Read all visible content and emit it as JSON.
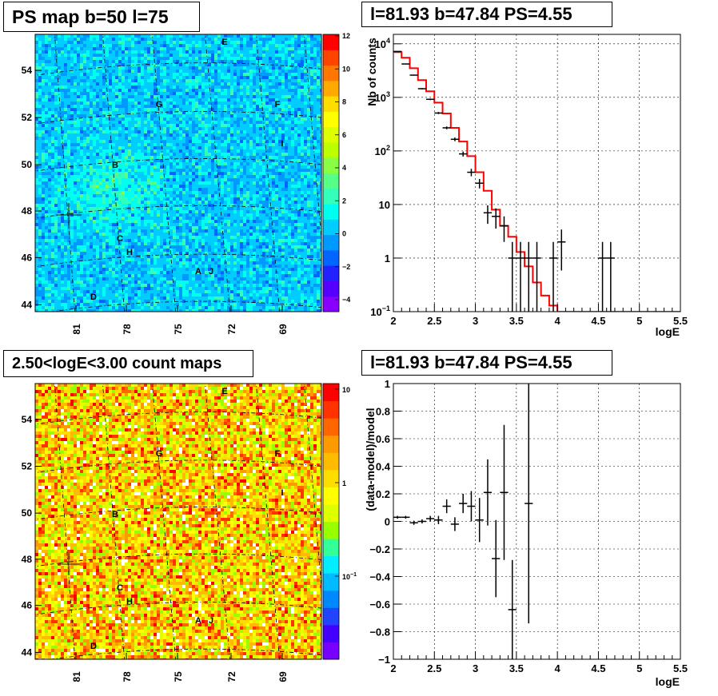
{
  "chart_data": [
    {
      "type": "heatmap",
      "title": "PS map b=50 l=75",
      "x_ticks": [
        "81",
        "78",
        "75",
        "72",
        "69"
      ],
      "y_ticks": [
        "44",
        "46",
        "48",
        "50",
        "52",
        "54"
      ],
      "colorbar_ticks": [
        "12",
        "10",
        "8",
        "6",
        "4",
        "2",
        "0",
        "−2",
        "−4"
      ],
      "colorbar_range": [
        -5,
        12
      ],
      "sources": [
        "A",
        "B",
        "C",
        "D",
        "E",
        "F",
        "G",
        "H",
        "I",
        "J"
      ]
    },
    {
      "type": "line",
      "title": "l=81.93 b=47.84 PS=4.55",
      "xlabel": "logE",
      "ylabel": "Nb of counts",
      "y_scale": "log",
      "xlim": [
        2,
        5.5
      ],
      "ylim": [
        0.1,
        15000
      ],
      "x_ticks": [
        "2",
        "2.5",
        "3",
        "3.5",
        "4",
        "4.5",
        "5",
        "5.5"
      ],
      "y_ticks": [
        {
          "label": "1",
          "sup": "",
          "value": 1
        },
        {
          "label": "10",
          "sup": "",
          "value": 10
        },
        {
          "label": "10",
          "sup": "2",
          "value": 100
        },
        {
          "label": "10",
          "sup": "3",
          "value": 1000
        },
        {
          "label": "10",
          "sup": "4",
          "value": 10000
        },
        {
          "label": "10",
          "sup": "−1",
          "value": 0.1
        }
      ],
      "grid": true,
      "model_step": {
        "edges": [
          2.0,
          2.1,
          2.2,
          2.3,
          2.4,
          2.5,
          2.6,
          2.7,
          2.8,
          2.9,
          3.0,
          3.1,
          3.2,
          3.3,
          3.4,
          3.5,
          3.6,
          3.7,
          3.8,
          3.9,
          4.0,
          5.5
        ],
        "values": [
          7000,
          5500,
          3500,
          2100,
          1300,
          800,
          500,
          270,
          150,
          80,
          40,
          18,
          8,
          4,
          2.5,
          1.3,
          0.7,
          0.35,
          0.2,
          0.13,
          0.1
        ]
      },
      "data_points": [
        {
          "x": 2.05,
          "y": 7200
        },
        {
          "x": 2.15,
          "y": 4200
        },
        {
          "x": 2.25,
          "y": 2600
        },
        {
          "x": 2.35,
          "y": 1450
        },
        {
          "x": 2.45,
          "y": 920
        },
        {
          "x": 2.55,
          "y": 510
        },
        {
          "x": 2.65,
          "y": 270
        },
        {
          "x": 2.75,
          "y": 165
        },
        {
          "x": 2.85,
          "y": 88
        },
        {
          "x": 2.95,
          "y": 40
        },
        {
          "x": 3.05,
          "y": 25
        },
        {
          "x": 3.15,
          "y": 7
        },
        {
          "x": 3.25,
          "y": 6
        },
        {
          "x": 3.35,
          "y": 4
        },
        {
          "x": 3.45,
          "y": 1
        },
        {
          "x": 3.55,
          "y": 1
        },
        {
          "x": 3.65,
          "y": 1
        },
        {
          "x": 3.75,
          "y": 1
        },
        {
          "x": 3.95,
          "y": 1
        },
        {
          "x": 4.05,
          "y": 2
        },
        {
          "x": 4.55,
          "y": 1
        },
        {
          "x": 4.65,
          "y": 1
        }
      ]
    },
    {
      "type": "heatmap",
      "title": "2.50<logE<3.00 count maps",
      "x_ticks": [
        "81",
        "78",
        "75",
        "72",
        "69"
      ],
      "y_ticks": [
        "44",
        "46",
        "48",
        "50",
        "52",
        "54"
      ],
      "colorbar_ticks": [
        {
          "label": "10",
          "sup": ""
        },
        {
          "label": "1",
          "sup": ""
        },
        {
          "label": "10",
          "sup": "−1"
        }
      ],
      "sources": [
        "A",
        "B",
        "C",
        "D",
        "E",
        "F",
        "G",
        "H",
        "I",
        "J"
      ]
    },
    {
      "type": "scatter",
      "title": "l=81.93 b=47.84 PS=4.55",
      "xlabel": "logE",
      "ylabel": "(data-model)/model",
      "xlim": [
        2,
        5.5
      ],
      "ylim": [
        -1,
        1
      ],
      "x_ticks": [
        "2",
        "2.5",
        "3",
        "3.5",
        "4",
        "4.5",
        "5",
        "5.5"
      ],
      "y_ticks": [
        "1",
        "0.8",
        "0.6",
        "0.4",
        "0.2",
        "0",
        "−0.2",
        "−0.4",
        "−0.6",
        "−0.8",
        "−1"
      ],
      "grid": true,
      "points": [
        {
          "x": 2.05,
          "y": 0.03,
          "err": 0.01
        },
        {
          "x": 2.15,
          "y": 0.03,
          "err": 0.01
        },
        {
          "x": 2.25,
          "y": -0.01,
          "err": 0.015
        },
        {
          "x": 2.35,
          "y": 0.0,
          "err": 0.015
        },
        {
          "x": 2.45,
          "y": 0.02,
          "err": 0.02
        },
        {
          "x": 2.55,
          "y": 0.01,
          "err": 0.03
        },
        {
          "x": 2.65,
          "y": 0.11,
          "err": 0.05
        },
        {
          "x": 2.75,
          "y": -0.02,
          "err": 0.05
        },
        {
          "x": 2.85,
          "y": 0.13,
          "err": 0.07
        },
        {
          "x": 2.95,
          "y": 0.11,
          "err": 0.11
        },
        {
          "x": 3.05,
          "y": 0.01,
          "err": 0.16
        },
        {
          "x": 3.15,
          "y": 0.21,
          "err": 0.24
        },
        {
          "x": 3.25,
          "y": -0.27,
          "err": 0.28
        },
        {
          "x": 3.35,
          "y": 0.21,
          "err": 0.49
        },
        {
          "x": 3.45,
          "y": -0.64,
          "err": 0.36
        },
        {
          "x": 3.65,
          "y": 0.13,
          "err": 0.87
        }
      ]
    }
  ],
  "colors": {
    "model_line": "#ff0000",
    "data": "#000000",
    "grid": "#000000"
  }
}
